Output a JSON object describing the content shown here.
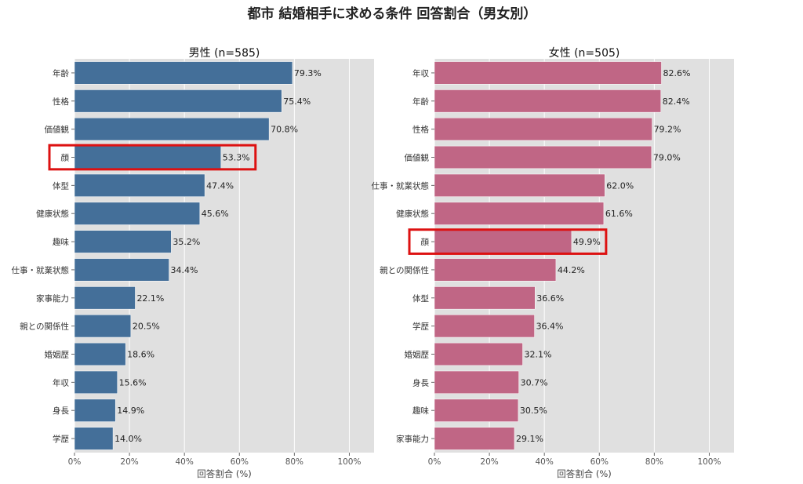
{
  "title": "都市 結婚相手に求める条件 回答割合（男女別）",
  "chart_data": [
    {
      "type": "bar",
      "orientation": "horizontal",
      "title": "男性 (n=585)",
      "xlabel": "回答割合 (%)",
      "ylabel": "",
      "xlim": [
        0,
        109
      ],
      "xticks": [
        "0%",
        "20%",
        "40%",
        "60%",
        "80%",
        "100%"
      ],
      "xtick_values": [
        0,
        20,
        40,
        60,
        80,
        100
      ],
      "grid": true,
      "color": "#446f99",
      "highlight_color": "#dd1111",
      "highlight_category": "顔",
      "categories": [
        "年齢",
        "性格",
        "価値観",
        "顔",
        "体型",
        "健康状態",
        "趣味",
        "仕事・就業状態",
        "家事能力",
        "親との関係性",
        "婚姻歴",
        "年収",
        "身長",
        "学歴"
      ],
      "values": [
        79.3,
        75.4,
        70.8,
        53.3,
        47.4,
        45.6,
        35.2,
        34.4,
        22.1,
        20.5,
        18.6,
        15.6,
        14.9,
        14.0
      ],
      "value_labels": [
        "79.3%",
        "75.4%",
        "70.8%",
        "53.3%",
        "47.4%",
        "45.6%",
        "35.2%",
        "34.4%",
        "22.1%",
        "20.5%",
        "18.6%",
        "15.6%",
        "14.9%",
        "14.0%"
      ]
    },
    {
      "type": "bar",
      "orientation": "horizontal",
      "title": "女性 (n=505)",
      "xlabel": "回答割合 (%)",
      "ylabel": "",
      "xlim": [
        0,
        109
      ],
      "xticks": [
        "0%",
        "20%",
        "40%",
        "60%",
        "80%",
        "100%"
      ],
      "xtick_values": [
        0,
        20,
        40,
        60,
        80,
        100
      ],
      "grid": true,
      "color": "#c06685",
      "highlight_color": "#dd1111",
      "highlight_category": "顔",
      "categories": [
        "年収",
        "年齢",
        "性格",
        "価値観",
        "仕事・就業状態",
        "健康状態",
        "顔",
        "親との関係性",
        "体型",
        "学歴",
        "婚姻歴",
        "身長",
        "趣味",
        "家事能力"
      ],
      "values": [
        82.6,
        82.4,
        79.2,
        79.0,
        62.0,
        61.6,
        49.9,
        44.2,
        36.6,
        36.4,
        32.1,
        30.7,
        30.5,
        29.1
      ],
      "value_labels": [
        "82.6%",
        "82.4%",
        "79.2%",
        "79.0%",
        "62.0%",
        "61.6%",
        "49.9%",
        "44.2%",
        "36.6%",
        "36.4%",
        "32.1%",
        "30.7%",
        "30.5%",
        "29.1%"
      ]
    }
  ]
}
